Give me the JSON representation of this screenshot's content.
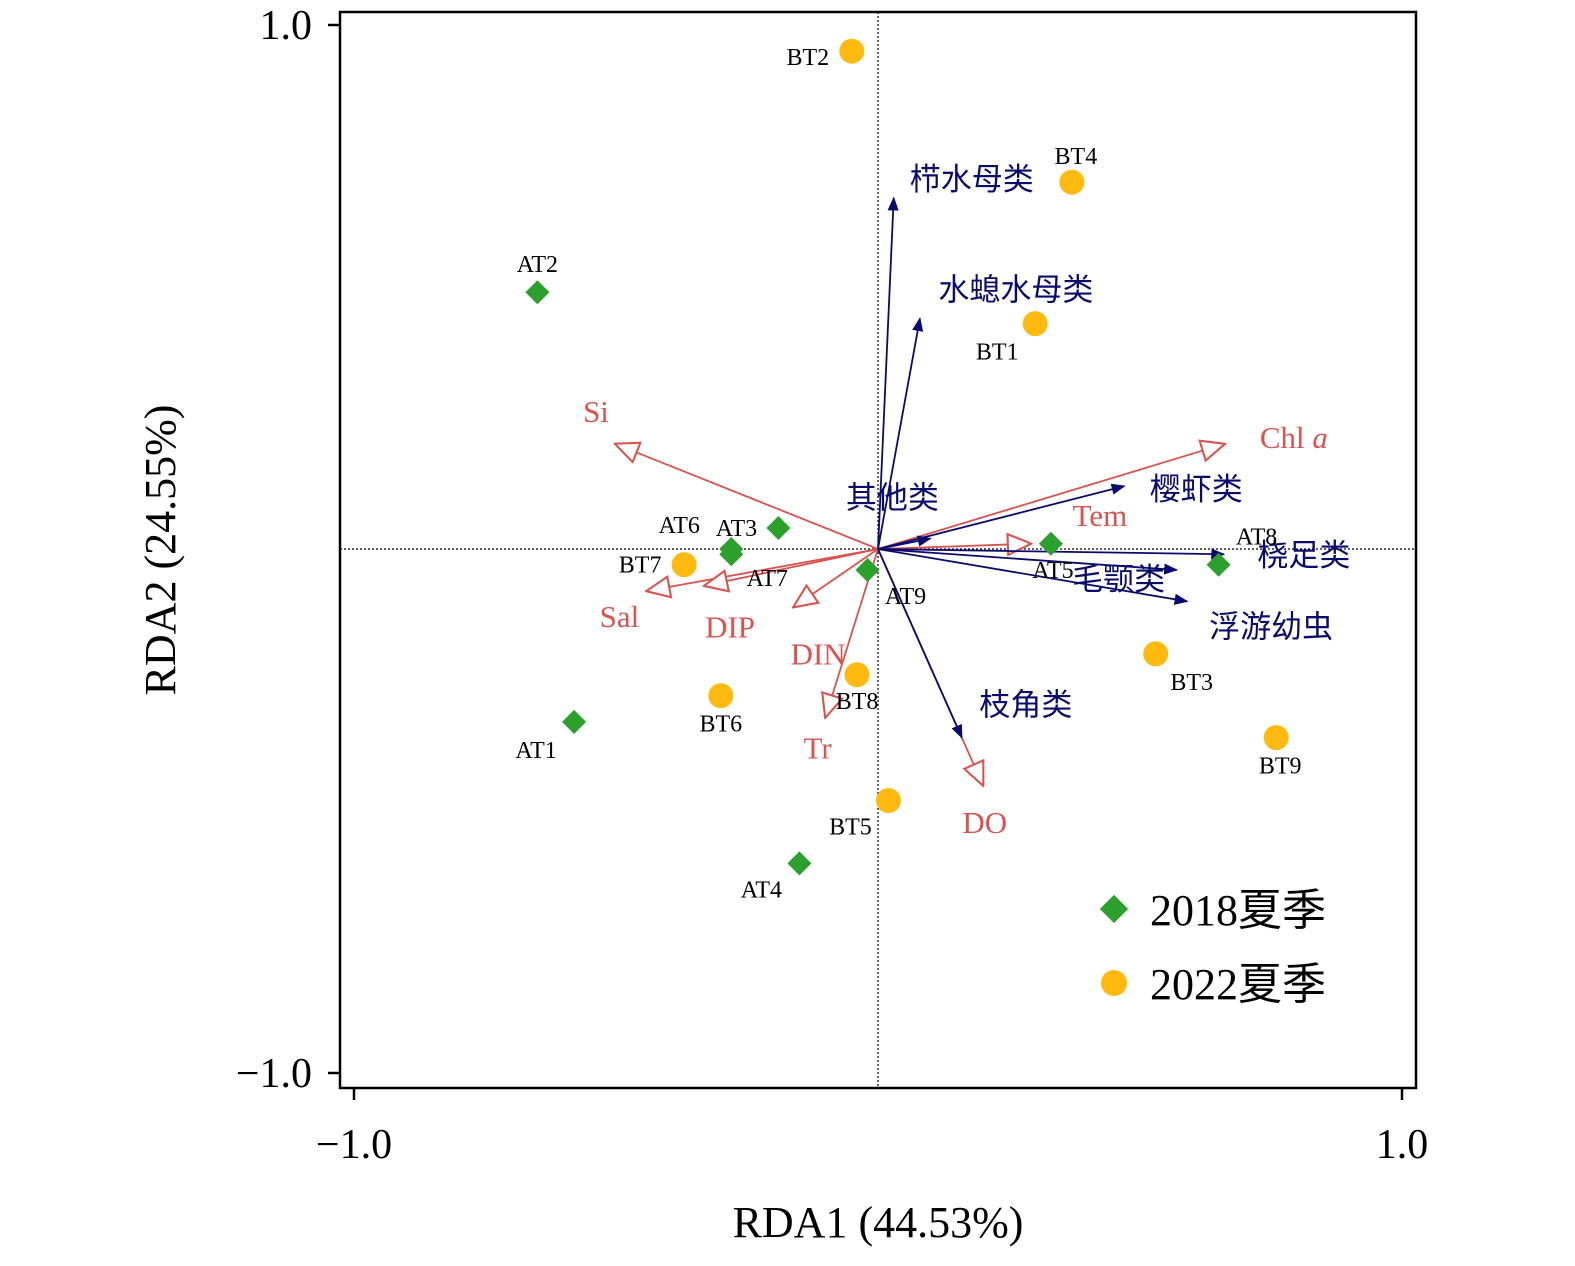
{
  "chart_data": {
    "type": "scatter",
    "xlabel": "RDA1 (44.53%)",
    "ylabel": "RDA2 (24.55%)",
    "xlim": [
      -1.0,
      1.0
    ],
    "ylim": [
      -1.0,
      1.0
    ],
    "x_tick_labels": [
      "−1.0",
      "1.0"
    ],
    "y_tick_labels": [
      "1.0",
      "−1.0"
    ],
    "x_ticks": [
      -1.0,
      1.0
    ],
    "y_ticks": [
      1.0,
      -1.0
    ],
    "grid": false,
    "legend_position": "bottom-right",
    "colors": {
      "series_2018": "#2ca02c",
      "series_2022": "#ffb90f",
      "env_arrows": "#d9534f",
      "species_arrows": "#0b0b6e"
    },
    "series": [
      {
        "name": "2018夏季",
        "marker": "diamond",
        "points": [
          {
            "label": "AT1",
            "x": -0.58,
            "y": -0.33
          },
          {
            "label": "AT2",
            "x": -0.65,
            "y": 0.49
          },
          {
            "label": "AT3",
            "x": -0.19,
            "y": 0.04
          },
          {
            "label": "AT4",
            "x": -0.15,
            "y": -0.6
          },
          {
            "label": "AT5",
            "x": 0.33,
            "y": 0.01
          },
          {
            "label": "AT6",
            "x": -0.28,
            "y": 0.0
          },
          {
            "label": "AT7",
            "x": -0.28,
            "y": -0.01
          },
          {
            "label": "AT8",
            "x": 0.65,
            "y": -0.03
          },
          {
            "label": "AT9",
            "x": -0.02,
            "y": -0.04
          }
        ]
      },
      {
        "name": "2022夏季",
        "marker": "circle",
        "points": [
          {
            "label": "BT1",
            "x": 0.3,
            "y": 0.43
          },
          {
            "label": "BT2",
            "x": -0.05,
            "y": 0.95
          },
          {
            "label": "BT3",
            "x": 0.53,
            "y": -0.2
          },
          {
            "label": "BT4",
            "x": 0.37,
            "y": 0.7
          },
          {
            "label": "BT5",
            "x": 0.02,
            "y": -0.48
          },
          {
            "label": "BT6",
            "x": -0.3,
            "y": -0.28
          },
          {
            "label": "BT7",
            "x": -0.37,
            "y": -0.03
          },
          {
            "label": "BT8",
            "x": -0.04,
            "y": -0.24
          },
          {
            "label": "BT9",
            "x": 0.76,
            "y": -0.36
          }
        ]
      }
    ],
    "env_vectors": [
      {
        "label": "Si",
        "x": -0.5,
        "y": 0.2
      },
      {
        "label": "Chl a",
        "x": 0.66,
        "y": 0.2
      },
      {
        "label": "Tem",
        "x": 0.29,
        "y": 0.01
      },
      {
        "label": "Sal",
        "x": -0.44,
        "y": -0.08
      },
      {
        "label": "DIP",
        "x": -0.33,
        "y": -0.07
      },
      {
        "label": "DIN",
        "x": -0.16,
        "y": -0.11
      },
      {
        "label": "Tr",
        "x": -0.1,
        "y": -0.32
      },
      {
        "label": "DO",
        "x": 0.2,
        "y": -0.45
      }
    ],
    "species_vectors": [
      {
        "label": "栉水母类",
        "x": 0.03,
        "y": 0.67
      },
      {
        "label": "水螅水母类",
        "x": 0.08,
        "y": 0.44
      },
      {
        "label": "樱虾类",
        "x": 0.47,
        "y": 0.12
      },
      {
        "label": "其他类",
        "x": 0.1,
        "y": 0.02
      },
      {
        "label": "桡足类",
        "x": 0.66,
        "y": -0.01
      },
      {
        "label": "毛颚类",
        "x": 0.57,
        "y": -0.04
      },
      {
        "label": "浮游幼虫",
        "x": 0.59,
        "y": -0.1
      },
      {
        "label": "枝角类",
        "x": 0.16,
        "y": -0.36
      }
    ]
  }
}
